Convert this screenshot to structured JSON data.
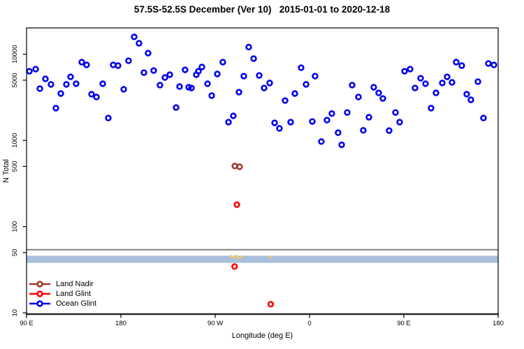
{
  "header": {
    "title": "57.5S-52.5S December (Ver 10)   2015-01-01 to 2020-12-18"
  },
  "axes": {
    "x_label": "Longitude (deg E)",
    "y_label": "N Total",
    "x_ticks": [
      {
        "deg": 90,
        "label": "90 E"
      },
      {
        "deg": 180,
        "label": "180"
      },
      {
        "deg": 270,
        "label": "90 W"
      },
      {
        "deg": 360,
        "label": "0"
      },
      {
        "deg": 450,
        "label": "90 E"
      },
      {
        "deg": 540,
        "label": "180"
      }
    ],
    "y_ticks": [
      {
        "value": 10000,
        "label": "10000"
      },
      {
        "value": 5000,
        "label": "5000"
      },
      {
        "value": 1000,
        "label": "1000"
      },
      {
        "value": 500,
        "label": "500"
      },
      {
        "value": 100,
        "label": "100"
      },
      {
        "value": 50,
        "label": "50"
      },
      {
        "value": 10,
        "label": "10"
      }
    ]
  },
  "legend": {
    "items": [
      {
        "label": "Land Nadir",
        "color": "#a33830"
      },
      {
        "label": "Land Glint",
        "color": "#ff0000"
      },
      {
        "label": "Ocean Glint",
        "color": "#0000ee"
      }
    ]
  },
  "chart_data": {
    "type": "scatter",
    "title": "57.5S-52.5S December (Ver 10)   2015-01-01 to 2020-12-18",
    "xlabel": "Longitude (deg E)",
    "ylabel": "N Total",
    "y_scale": "log",
    "ylim": [
      9,
      21000
    ],
    "x_deg_range": [
      90,
      540
    ],
    "x_axis_note": "axis runs eastward 90E → 180 → 90W → 0 → 90E → 180 (450 deg span)",
    "grid": false,
    "legend_position": "bottom-left",
    "series": [
      {
        "name": "Land Nadir",
        "color": "#a33830",
        "marker": "open-circle",
        "points": [
          [
            288.7,
            505
          ],
          [
            293.3,
            495
          ]
        ]
      },
      {
        "name": "Land Glint",
        "color": "#ff0000",
        "marker": "open-circle",
        "points": [
          [
            290.7,
            180
          ],
          [
            288.5,
            34.5
          ],
          [
            323.0,
            12.6
          ]
        ]
      },
      {
        "name": "Ocean Glint",
        "color": "#0000ee",
        "marker": "open-circle",
        "points": [
          [
            92.7,
            6350
          ],
          [
            98.7,
            6720
          ],
          [
            102.7,
            3990
          ],
          [
            108.0,
            5180
          ],
          [
            113.3,
            4470
          ],
          [
            118.0,
            2370
          ],
          [
            122.7,
            3500
          ],
          [
            128.0,
            4470
          ],
          [
            132.0,
            5470
          ],
          [
            137.3,
            4550
          ],
          [
            142.7,
            8100
          ],
          [
            147.3,
            7520
          ],
          [
            152.0,
            3440
          ],
          [
            156.7,
            3190
          ],
          [
            162.7,
            4550
          ],
          [
            168.0,
            1820
          ],
          [
            172.7,
            7520
          ],
          [
            177.3,
            7380
          ],
          [
            182.7,
            3920
          ],
          [
            187.3,
            8410
          ],
          [
            192.7,
            15900
          ],
          [
            197.3,
            13400
          ],
          [
            202.0,
            6120
          ],
          [
            206.0,
            10300
          ],
          [
            211.3,
            6470
          ],
          [
            217.3,
            4380
          ],
          [
            222.0,
            5370
          ],
          [
            226.7,
            5790
          ],
          [
            232.7,
            2410
          ],
          [
            236.0,
            4220
          ],
          [
            241.3,
            6590
          ],
          [
            244.7,
            4140
          ],
          [
            247.3,
            4060
          ],
          [
            252.0,
            5790
          ],
          [
            254.0,
            6350
          ],
          [
            257.3,
            7110
          ],
          [
            262.7,
            4550
          ],
          [
            266.7,
            3310
          ],
          [
            272.0,
            5900
          ],
          [
            277.3,
            8100
          ],
          [
            292.7,
            3630
          ],
          [
            297.3,
            5570
          ],
          [
            302.0,
            12100
          ],
          [
            306.7,
            8900
          ],
          [
            312.0,
            5670
          ],
          [
            316.7,
            4060
          ],
          [
            322.0,
            4640
          ],
          [
            336.7,
            2900
          ],
          [
            346.0,
            3500
          ],
          [
            352.0,
            6980
          ],
          [
            356.7,
            4470
          ],
          [
            365.3,
            5570
          ],
          [
            282.7,
            1630
          ],
          [
            287.3,
            1930
          ],
          [
            326.7,
            1600
          ],
          [
            331.3,
            1380
          ],
          [
            342.0,
            1630
          ],
          [
            362.7,
            1660
          ],
          [
            371.3,
            970
          ],
          [
            376.7,
            1720
          ],
          [
            381.3,
            2050
          ],
          [
            387.3,
            1230
          ],
          [
            390.7,
            890
          ],
          [
            396.0,
            2110
          ],
          [
            400.7,
            4380
          ],
          [
            406.7,
            3190
          ],
          [
            411.3,
            1310
          ],
          [
            416.7,
            1860
          ],
          [
            421.3,
            4140
          ],
          [
            426.0,
            3560
          ],
          [
            430.0,
            3070
          ],
          [
            436.0,
            1300
          ],
          [
            442.0,
            2110
          ],
          [
            446.0,
            1630
          ],
          [
            450.7,
            6350
          ],
          [
            456.0,
            6720
          ],
          [
            460.7,
            4060
          ],
          [
            466.0,
            5270
          ],
          [
            470.7,
            4550
          ],
          [
            476.0,
            2370
          ],
          [
            480.7,
            3560
          ],
          [
            486.7,
            4640
          ],
          [
            491.3,
            5470
          ],
          [
            496.0,
            4720
          ],
          [
            500.0,
            8100
          ],
          [
            505.3,
            7380
          ],
          [
            510.0,
            3440
          ],
          [
            514.0,
            2960
          ],
          [
            520.7,
            4810
          ],
          [
            526.0,
            1820
          ],
          [
            530.7,
            7820
          ],
          [
            536.0,
            7520
          ]
        ]
      }
    ],
    "highlight_band": {
      "n_range": [
        38,
        46
      ],
      "color": "#a9bfdc"
    },
    "threshold_line": {
      "n": 54,
      "color": "#808080"
    },
    "flagged_marks": {
      "color": "#e8c87c",
      "points": [
        [
          285.3,
          45
        ],
        [
          287.3,
          44
        ],
        [
          290.0,
          45.5
        ],
        [
          292.0,
          43.5
        ],
        [
          294.7,
          44.5
        ],
        [
          322.7,
          44
        ]
      ]
    }
  }
}
